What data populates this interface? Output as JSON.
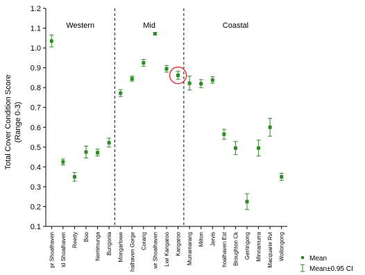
{
  "chart_data": {
    "type": "scatter",
    "title": "",
    "xlabel": "",
    "ylabel": "Total Cover Condition Score",
    "ylabel_sub": "(Range 0-3)",
    "ylim": [
      0.1,
      1.2
    ],
    "yticks": [
      0.1,
      0.2,
      0.3,
      0.4,
      0.5,
      0.6,
      0.7,
      0.8,
      0.9,
      1.0,
      1.1,
      1.2
    ],
    "ytick_labels": [
      "0.1",
      "0.2",
      "0.3",
      "0.4",
      "0.5",
      "0.6",
      "0.7",
      "0.8",
      "0.9",
      "1.0",
      "1.1",
      "1.2"
    ],
    "grid": false,
    "legend_position": "bottom-right",
    "categories": [
      "pr Shoalhaven",
      "id Shoalhaven",
      "Reedy",
      "Boo",
      "Nerrimunga",
      "Bungonia",
      "Mongarlowe",
      "halhaven Gorge",
      "Corang",
      "wr Shoalhaven",
      "Lwr Kangaroo",
      "Kangaroo",
      "Murramarang",
      "Milton",
      "Jervis",
      "hoalhaven Est",
      "Broughton Ck",
      "Gerringong",
      "Minnamurra",
      "Macquarie Rvt",
      "Wollongong"
    ],
    "series": [
      {
        "name": "Mean",
        "values": [
          1.035,
          0.425,
          0.35,
          0.475,
          0.472,
          0.522,
          0.772,
          0.845,
          0.925,
          1.072,
          0.895,
          0.862,
          0.822,
          0.82,
          0.838,
          0.565,
          0.495,
          0.225,
          0.495,
          0.6,
          0.35
        ],
        "ci_low": [
          1.005,
          0.41,
          0.328,
          0.445,
          0.455,
          0.5,
          0.755,
          0.832,
          0.908,
          1.066,
          0.878,
          0.842,
          0.788,
          0.8,
          0.822,
          0.54,
          0.462,
          0.185,
          0.455,
          0.555,
          0.332
        ],
        "ci_high": [
          1.065,
          0.44,
          0.372,
          0.505,
          0.49,
          0.545,
          0.79,
          0.858,
          0.942,
          1.078,
          0.912,
          0.882,
          0.858,
          0.84,
          0.855,
          0.59,
          0.528,
          0.265,
          0.535,
          0.645,
          0.368
        ]
      }
    ],
    "regions": [
      {
        "label": "Western",
        "from": 0,
        "to": 5
      },
      {
        "label": "Mid",
        "from": 6,
        "to": 11
      },
      {
        "label": "Coastal",
        "from": 12,
        "to": 20
      }
    ],
    "highlight_index": 11,
    "colors": {
      "marker": "#2e8b23",
      "highlight": "#e02020",
      "axis": "#000000",
      "divider": "#333333"
    },
    "legend": {
      "mean": "Mean",
      "ci": "Mean±0.95 CI"
    }
  }
}
